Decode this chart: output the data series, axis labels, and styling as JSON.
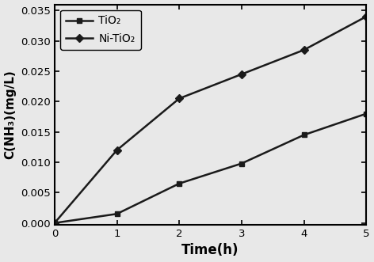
{
  "tio2_x": [
    0,
    1,
    2,
    3,
    4,
    5
  ],
  "tio2_y": [
    0.0,
    0.0015,
    0.0065,
    0.0098,
    0.0145,
    0.018
  ],
  "nitio2_x": [
    0,
    1,
    2,
    3,
    4,
    5
  ],
  "nitio2_y": [
    0.0,
    0.012,
    0.0205,
    0.0245,
    0.0285,
    0.034
  ],
  "xlabel": "Time(h)",
  "ylabel": "C(NH₃)(mg/L)",
  "xlim": [
    0,
    5
  ],
  "ylim": [
    -0.0003,
    0.036
  ],
  "yticks": [
    0.0,
    0.005,
    0.01,
    0.015,
    0.02,
    0.025,
    0.03,
    0.035
  ],
  "xticks": [
    0,
    1,
    2,
    3,
    4,
    5
  ],
  "legend_tio2": "TiO₂",
  "legend_nitio2": "Ni-TiO₂",
  "line_color": "#1a1a1a",
  "bg_color": "#e8e8e8",
  "plot_bg_color": "#e8e8e8"
}
